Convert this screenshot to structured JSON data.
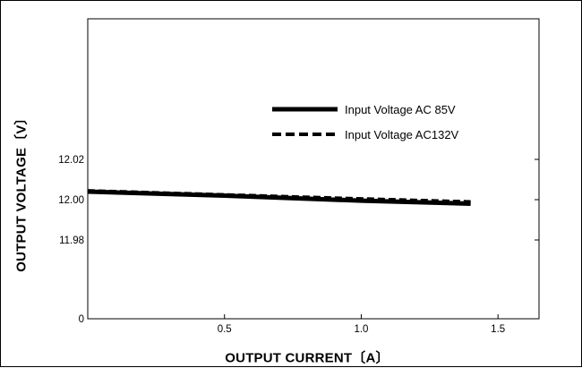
{
  "chart_data": {
    "type": "line",
    "title": "",
    "xlabel": "OUTPUT CURRENT〔A〕",
    "ylabel": "OUTPUT VOLTAGE〔V〕",
    "xlim": [
      0,
      1.65
    ],
    "x_ticks": [
      {
        "value": 0.5,
        "label": "0.5"
      },
      {
        "value": 1.0,
        "label": "1.0"
      },
      {
        "value": 1.5,
        "label": "1.5"
      }
    ],
    "y_ticks": [
      {
        "label": "12.02"
      },
      {
        "label": "12.00"
      },
      {
        "label": "11.98"
      },
      {
        "label": "0"
      }
    ],
    "y_axis_note": "broken axis: 0 at bottom, 11.98–12.02 region shown above",
    "ylim": [
      11.96,
      12.06
    ],
    "legend_position": "top-right",
    "series": [
      {
        "name": "Input Voltage  AC 85V",
        "style": "solid",
        "color": "#000000",
        "x": [
          0,
          0.5,
          1.0,
          1.4
        ],
        "y": [
          12.004,
          12.002,
          11.9995,
          11.998
        ]
      },
      {
        "name": "Input Voltage AC132V",
        "style": "dashed",
        "color": "#000000",
        "x": [
          0,
          0.5,
          1.0,
          1.4
        ],
        "y": [
          12.0045,
          12.0025,
          12.0005,
          11.999
        ]
      }
    ],
    "grid": false
  }
}
